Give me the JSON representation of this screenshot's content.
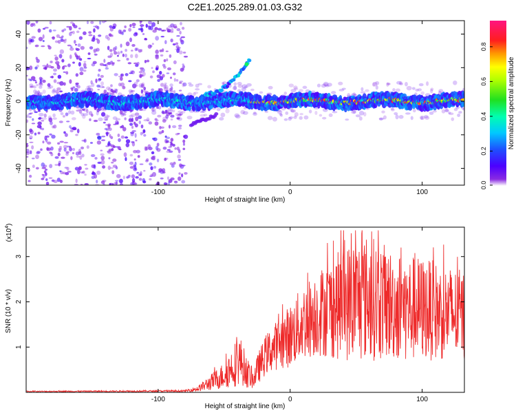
{
  "title": "C2E1.2025.289.01.03.G32",
  "chart_data": [
    {
      "type": "heatmap",
      "title": "C2E1.2025.289.01.03.G32",
      "xlabel": "Height of straight line (km)",
      "ylabel": "Frequency (Hz)",
      "xlim": [
        -200,
        132
      ],
      "ylim": [
        -50,
        48
      ],
      "xticks": [
        -100,
        0,
        100
      ],
      "xtick_labels": [
        "-100",
        "0",
        "100"
      ],
      "yticks": [
        -40,
        -20,
        0,
        20,
        40
      ],
      "ytick_labels": [
        "-40",
        "-20",
        "0",
        "20",
        "40"
      ],
      "colorbar": {
        "label": "Normalized spectral amplitude",
        "range": [
          0,
          0.95
        ],
        "ticks": [
          0.0,
          0.2,
          0.4,
          0.6,
          0.8
        ],
        "tick_labels": [
          "0.0",
          "0.2",
          "0.4",
          "0.6",
          "0.8"
        ],
        "colormap": "rainbow (purple-blue-cyan-green-yellow-red-magenta)"
      },
      "features": [
        {
          "name": "main band",
          "x_range": [
            -200,
            132
          ],
          "freq_center": 0,
          "freq_halfwidth": 4,
          "amplitude": 0.25
        },
        {
          "name": "strong band",
          "x_range": [
            -30,
            132
          ],
          "freq_center": 0,
          "freq_halfwidth": 2,
          "amplitude": 0.75
        },
        {
          "name": "upper arc",
          "from": [
            -65,
            4
          ],
          "to": [
            -30,
            26
          ],
          "amplitude": 0.45
        },
        {
          "name": "lower arc",
          "from": [
            -75,
            -14
          ],
          "to": [
            -55,
            -8
          ],
          "amplitude": 0.1
        },
        {
          "name": "scattered noise",
          "x_range": [
            -200,
            -80
          ],
          "freq_range": [
            -50,
            48
          ],
          "amplitude": 0.05
        }
      ]
    },
    {
      "type": "line",
      "xlabel": "Height of straight line (km)",
      "ylabel": "SNR (10 * v/v)",
      "scale_label": "(x10",
      "scale_exponent": "4",
      "xlim": [
        -200,
        132
      ],
      "ylim": [
        0,
        3.65
      ],
      "xticks": [
        -100,
        0,
        100
      ],
      "xtick_labels": [
        "-100",
        "0",
        "100"
      ],
      "yticks": [
        1,
        2,
        3
      ],
      "ytick_labels": [
        "1",
        "2",
        "3"
      ],
      "series": [
        {
          "name": "SNR",
          "color": "#ee2a2a",
          "envelope_x": [
            -200,
            -80,
            -70,
            -60,
            -50,
            -42,
            -38,
            -33,
            -28,
            -24,
            -18,
            -10,
            0,
            10,
            20,
            30,
            40,
            50,
            60,
            70,
            80,
            90,
            100,
            110,
            120,
            132
          ],
          "envelope_mean": [
            0.02,
            0.03,
            0.08,
            0.22,
            0.38,
            0.62,
            0.72,
            0.45,
            0.28,
            0.55,
            0.85,
            1.05,
            1.25,
            1.55,
            1.75,
            1.85,
            1.95,
            2.05,
            2.1,
            2.0,
            1.9,
            1.85,
            1.85,
            1.8,
            1.75,
            1.7
          ],
          "envelope_amp": [
            0.01,
            0.02,
            0.06,
            0.18,
            0.3,
            0.5,
            0.55,
            0.35,
            0.2,
            0.35,
            0.45,
            0.55,
            0.7,
            0.85,
            0.95,
            1.1,
            1.25,
            1.4,
            1.4,
            1.3,
            1.2,
            1.2,
            1.15,
            1.1,
            1.05,
            1.0
          ],
          "peak_max": 3.58
        }
      ]
    }
  ]
}
